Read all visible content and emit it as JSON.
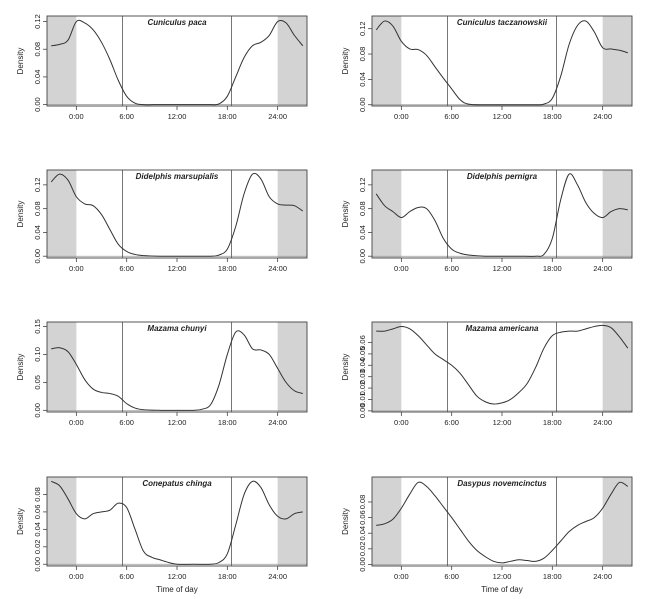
{
  "chart_data": [
    {
      "type": "line",
      "title": "Cuniculus paca",
      "xlabel": "",
      "ylabel": "Density",
      "x_ticks": [
        "0:00",
        "6:00",
        "12:00",
        "18:00",
        "24:00"
      ],
      "y_ticks": [
        "0.00",
        "0.04",
        "0.08",
        "0.12"
      ],
      "xlim": [
        -3.5,
        27.5
      ],
      "ylim": [
        -0.002,
        0.128
      ],
      "night_shading": [
        [
          -3.5,
          0
        ],
        [
          24,
          27.5
        ]
      ],
      "sunrise_sunset_lines": [
        5.5,
        18.5
      ],
      "points": [
        [
          -3,
          0.085
        ],
        [
          -2,
          0.087
        ],
        [
          -1,
          0.093
        ],
        [
          0,
          0.12
        ],
        [
          1,
          0.118
        ],
        [
          2,
          0.108
        ],
        [
          3,
          0.09
        ],
        [
          4,
          0.065
        ],
        [
          5,
          0.035
        ],
        [
          6,
          0.012
        ],
        [
          7,
          0.002
        ],
        [
          8,
          0.0
        ],
        [
          10,
          0.0
        ],
        [
          12,
          0.0
        ],
        [
          14,
          0.0
        ],
        [
          16,
          0.0
        ],
        [
          17,
          0.001
        ],
        [
          18,
          0.012
        ],
        [
          19,
          0.04
        ],
        [
          20,
          0.068
        ],
        [
          21,
          0.085
        ],
        [
          22,
          0.09
        ],
        [
          23,
          0.1
        ],
        [
          24,
          0.12
        ],
        [
          25,
          0.118
        ],
        [
          26,
          0.1
        ],
        [
          27,
          0.085
        ]
      ]
    },
    {
      "type": "line",
      "title": "Cuniculus taczanowskii",
      "xlabel": "",
      "ylabel": "Density",
      "x_ticks": [
        "0:00",
        "6:00",
        "12:00",
        "18:00",
        "24:00"
      ],
      "y_ticks": [
        "0.00",
        "0.04",
        "0.08",
        "0.12"
      ],
      "xlim": [
        -3.5,
        27.5
      ],
      "ylim": [
        -0.002,
        0.14
      ],
      "night_shading": [
        [
          -3.5,
          0
        ],
        [
          24,
          27.5
        ]
      ],
      "sunrise_sunset_lines": [
        5.5,
        18.5
      ],
      "points": [
        [
          -3,
          0.118
        ],
        [
          -2,
          0.132
        ],
        [
          -1,
          0.124
        ],
        [
          0,
          0.1
        ],
        [
          1,
          0.088
        ],
        [
          2,
          0.087
        ],
        [
          3,
          0.078
        ],
        [
          4,
          0.06
        ],
        [
          5,
          0.042
        ],
        [
          6,
          0.025
        ],
        [
          7,
          0.008
        ],
        [
          8,
          0.001
        ],
        [
          10,
          0.0
        ],
        [
          12,
          0.0
        ],
        [
          14,
          0.0
        ],
        [
          16,
          0.0
        ],
        [
          17,
          0.001
        ],
        [
          18,
          0.01
        ],
        [
          19,
          0.045
        ],
        [
          20,
          0.095
        ],
        [
          21,
          0.125
        ],
        [
          22,
          0.132
        ],
        [
          23,
          0.115
        ],
        [
          24,
          0.09
        ],
        [
          25,
          0.088
        ],
        [
          26,
          0.086
        ],
        [
          27,
          0.082
        ]
      ]
    },
    {
      "type": "line",
      "title": "Didelphis marsupialis",
      "xlabel": "",
      "ylabel": "Density",
      "x_ticks": [
        "0:00",
        "6:00",
        "12:00",
        "18:00",
        "24:00"
      ],
      "y_ticks": [
        "0.00",
        "0.04",
        "0.08",
        "0.12"
      ],
      "xlim": [
        -3.5,
        27.5
      ],
      "ylim": [
        -0.003,
        0.145
      ],
      "night_shading": [
        [
          -3.5,
          0
        ],
        [
          24,
          27.5
        ]
      ],
      "sunrise_sunset_lines": [
        5.5,
        18.5
      ],
      "points": [
        [
          -3,
          0.125
        ],
        [
          -2,
          0.138
        ],
        [
          -1,
          0.128
        ],
        [
          0,
          0.1
        ],
        [
          1,
          0.088
        ],
        [
          2,
          0.085
        ],
        [
          3,
          0.07
        ],
        [
          4,
          0.045
        ],
        [
          5,
          0.02
        ],
        [
          6,
          0.008
        ],
        [
          7,
          0.003
        ],
        [
          8,
          0.001
        ],
        [
          10,
          0.0
        ],
        [
          12,
          0.0
        ],
        [
          14,
          0.0
        ],
        [
          16,
          0.0
        ],
        [
          17,
          0.002
        ],
        [
          18,
          0.012
        ],
        [
          19,
          0.05
        ],
        [
          20,
          0.105
        ],
        [
          21,
          0.138
        ],
        [
          22,
          0.13
        ],
        [
          23,
          0.1
        ],
        [
          24,
          0.088
        ],
        [
          25,
          0.086
        ],
        [
          26,
          0.085
        ],
        [
          27,
          0.076
        ]
      ]
    },
    {
      "type": "line",
      "title": "Didelphis pernigra",
      "xlabel": "",
      "ylabel": "Density",
      "x_ticks": [
        "0:00",
        "6:00",
        "12:00",
        "18:00",
        "24:00"
      ],
      "y_ticks": [
        "0.00",
        "0.04",
        "0.08",
        "0.12"
      ],
      "xlim": [
        -3.5,
        27.5
      ],
      "ylim": [
        -0.003,
        0.145
      ],
      "night_shading": [
        [
          -3.5,
          0
        ],
        [
          24,
          27.5
        ]
      ],
      "sunrise_sunset_lines": [
        5.5,
        18.5
      ],
      "points": [
        [
          -3,
          0.105
        ],
        [
          -2,
          0.085
        ],
        [
          -1,
          0.075
        ],
        [
          0,
          0.065
        ],
        [
          1,
          0.075
        ],
        [
          2,
          0.082
        ],
        [
          3,
          0.08
        ],
        [
          4,
          0.06
        ],
        [
          5,
          0.03
        ],
        [
          6,
          0.012
        ],
        [
          7,
          0.005
        ],
        [
          8,
          0.002
        ],
        [
          10,
          0.0
        ],
        [
          12,
          0.0
        ],
        [
          14,
          0.0
        ],
        [
          16,
          0.0
        ],
        [
          17,
          0.003
        ],
        [
          18,
          0.03
        ],
        [
          19,
          0.095
        ],
        [
          20,
          0.138
        ],
        [
          21,
          0.12
        ],
        [
          22,
          0.09
        ],
        [
          23,
          0.072
        ],
        [
          24,
          0.065
        ],
        [
          25,
          0.075
        ],
        [
          26,
          0.08
        ],
        [
          27,
          0.078
        ]
      ]
    },
    {
      "type": "line",
      "title": "Mazama chunyi",
      "xlabel": "",
      "ylabel": "Density",
      "x_ticks": [
        "0:00",
        "6:00",
        "12:00",
        "18:00",
        "24:00"
      ],
      "y_ticks": [
        "0.00",
        "0.05",
        "0.10",
        "0.15"
      ],
      "xlim": [
        -3.5,
        27.5
      ],
      "ylim": [
        -0.003,
        0.158
      ],
      "night_shading": [
        [
          -3.5,
          0
        ],
        [
          24,
          27.5
        ]
      ],
      "sunrise_sunset_lines": [
        5.5,
        18.5
      ],
      "points": [
        [
          -3,
          0.11
        ],
        [
          -2,
          0.112
        ],
        [
          -1,
          0.105
        ],
        [
          0,
          0.082
        ],
        [
          1,
          0.055
        ],
        [
          2,
          0.038
        ],
        [
          3,
          0.032
        ],
        [
          4,
          0.03
        ],
        [
          5,
          0.025
        ],
        [
          6,
          0.012
        ],
        [
          7,
          0.004
        ],
        [
          8,
          0.001
        ],
        [
          10,
          0.0
        ],
        [
          12,
          0.0
        ],
        [
          14,
          0.0
        ],
        [
          15,
          0.002
        ],
        [
          16,
          0.01
        ],
        [
          17,
          0.045
        ],
        [
          18,
          0.1
        ],
        [
          19,
          0.14
        ],
        [
          20,
          0.135
        ],
        [
          21,
          0.11
        ],
        [
          22,
          0.108
        ],
        [
          23,
          0.1
        ],
        [
          24,
          0.075
        ],
        [
          25,
          0.05
        ],
        [
          26,
          0.035
        ],
        [
          27,
          0.03
        ]
      ]
    },
    {
      "type": "line",
      "title": "Mazama americana",
      "xlabel": "",
      "ylabel": "Density",
      "x_ticks": [
        "0:00",
        "6:00",
        "12:00",
        "18:00",
        "24:00"
      ],
      "y_ticks": [
        "0.00",
        "0.01",
        "0.02",
        "0.03",
        "0.04",
        "0.05",
        "0.06"
      ],
      "xlim": [
        -3.5,
        27.5
      ],
      "ylim": [
        -0.001,
        0.078
      ],
      "night_shading": [
        [
          -3.5,
          0
        ],
        [
          24,
          27.5
        ]
      ],
      "sunrise_sunset_lines": [
        5.5,
        18.5
      ],
      "points": [
        [
          -3,
          0.07
        ],
        [
          -2,
          0.07
        ],
        [
          -1,
          0.072
        ],
        [
          0,
          0.074
        ],
        [
          1,
          0.072
        ],
        [
          2,
          0.066
        ],
        [
          3,
          0.058
        ],
        [
          4,
          0.05
        ],
        [
          5,
          0.045
        ],
        [
          6,
          0.04
        ],
        [
          7,
          0.033
        ],
        [
          8,
          0.023
        ],
        [
          9,
          0.013
        ],
        [
          10,
          0.008
        ],
        [
          11,
          0.006
        ],
        [
          12,
          0.007
        ],
        [
          13,
          0.01
        ],
        [
          14,
          0.016
        ],
        [
          15,
          0.024
        ],
        [
          16,
          0.038
        ],
        [
          17,
          0.055
        ],
        [
          18,
          0.066
        ],
        [
          19,
          0.069
        ],
        [
          20,
          0.07
        ],
        [
          21,
          0.07
        ],
        [
          22,
          0.072
        ],
        [
          23,
          0.074
        ],
        [
          24,
          0.075
        ],
        [
          25,
          0.073
        ],
        [
          26,
          0.065
        ],
        [
          27,
          0.055
        ]
      ]
    },
    {
      "type": "line",
      "title": "Conepatus chinga",
      "xlabel": "Time of day",
      "ylabel": "Density",
      "x_ticks": [
        "0:00",
        "6:00",
        "12:00",
        "18:00",
        "24:00"
      ],
      "y_ticks": [
        "0.00",
        "0.02",
        "0.04",
        "0.06",
        "0.08"
      ],
      "xlim": [
        -3.5,
        27.5
      ],
      "ylim": [
        -0.002,
        0.1
      ],
      "night_shading": [
        [
          -3.5,
          0
        ],
        [
          24,
          27.5
        ]
      ],
      "sunrise_sunset_lines": [
        5.5,
        18.5
      ],
      "points": [
        [
          -3,
          0.095
        ],
        [
          -2,
          0.09
        ],
        [
          -1,
          0.075
        ],
        [
          0,
          0.058
        ],
        [
          1,
          0.052
        ],
        [
          2,
          0.058
        ],
        [
          3,
          0.06
        ],
        [
          4,
          0.062
        ],
        [
          5,
          0.07
        ],
        [
          6,
          0.065
        ],
        [
          7,
          0.04
        ],
        [
          8,
          0.015
        ],
        [
          9,
          0.008
        ],
        [
          10,
          0.005
        ],
        [
          11,
          0.002
        ],
        [
          12,
          0.0
        ],
        [
          14,
          0.0
        ],
        [
          16,
          0.0
        ],
        [
          17,
          0.002
        ],
        [
          18,
          0.012
        ],
        [
          19,
          0.045
        ],
        [
          20,
          0.08
        ],
        [
          21,
          0.095
        ],
        [
          22,
          0.088
        ],
        [
          23,
          0.068
        ],
        [
          24,
          0.055
        ],
        [
          25,
          0.052
        ],
        [
          26,
          0.058
        ],
        [
          27,
          0.06
        ]
      ]
    },
    {
      "type": "line",
      "title": "Dasypus novemcinctus",
      "xlabel": "Time of day",
      "ylabel": "Density",
      "x_ticks": [
        "0:00",
        "6:00",
        "12:00",
        "18:00",
        "24:00"
      ],
      "y_ticks": [
        "0.00",
        "0.02",
        "0.04",
        "0.06",
        "0.08"
      ],
      "xlim": [
        -3.5,
        27.5
      ],
      "ylim": [
        -0.002,
        0.112
      ],
      "night_shading": [
        [
          -3.5,
          0
        ],
        [
          24,
          27.5
        ]
      ],
      "sunrise_sunset_lines": [
        5.5,
        18.5
      ],
      "points": [
        [
          -3,
          0.05
        ],
        [
          -2,
          0.052
        ],
        [
          -1,
          0.058
        ],
        [
          0,
          0.072
        ],
        [
          1,
          0.09
        ],
        [
          2,
          0.105
        ],
        [
          3,
          0.1
        ],
        [
          4,
          0.088
        ],
        [
          5,
          0.074
        ],
        [
          6,
          0.06
        ],
        [
          7,
          0.045
        ],
        [
          8,
          0.03
        ],
        [
          9,
          0.018
        ],
        [
          10,
          0.01
        ],
        [
          11,
          0.004
        ],
        [
          12,
          0.002
        ],
        [
          13,
          0.004
        ],
        [
          14,
          0.006
        ],
        [
          15,
          0.005
        ],
        [
          16,
          0.004
        ],
        [
          17,
          0.008
        ],
        [
          18,
          0.018
        ],
        [
          19,
          0.03
        ],
        [
          20,
          0.042
        ],
        [
          21,
          0.05
        ],
        [
          22,
          0.055
        ],
        [
          23,
          0.06
        ],
        [
          24,
          0.072
        ],
        [
          25,
          0.09
        ],
        [
          26,
          0.105
        ],
        [
          27,
          0.1
        ]
      ]
    }
  ]
}
